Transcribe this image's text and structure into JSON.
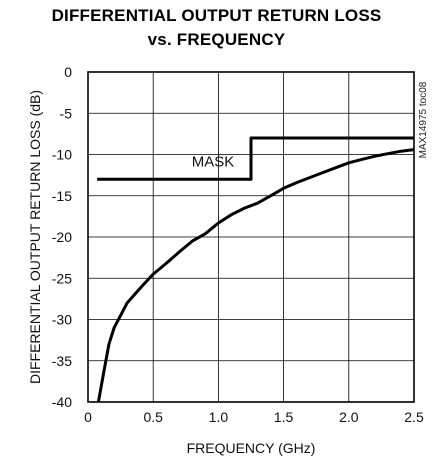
{
  "chart_data": {
    "type": "line",
    "title": "DIFFERENTIAL OUTPUT RETURN LOSS",
    "subtitle": "vs. FREQUENCY",
    "xlabel": "FREQUENCY (GHz)",
    "ylabel": "DIFFERENTIAL OUTPUT RETURN LOSS (dB)",
    "xlim": [
      0,
      2.5
    ],
    "ylim": [
      -40,
      0
    ],
    "xticks": [
      0,
      0.5,
      1.0,
      1.5,
      2.0,
      2.5
    ],
    "xtick_labels": [
      "0",
      "0.5",
      "1.0",
      "1.5",
      "2.0",
      "2.5"
    ],
    "yticks": [
      0,
      -5,
      -10,
      -15,
      -20,
      -25,
      -30,
      -35,
      -40
    ],
    "ytick_labels": [
      "0",
      "-5",
      "-10",
      "-15",
      "-20",
      "-25",
      "-30",
      "-35",
      "-40"
    ],
    "grid": true,
    "annotations": {
      "mask_label": "MASK",
      "figure_id": "MAX14975 toc08"
    },
    "series": [
      {
        "values": [
          [
            0.08,
            -40
          ],
          [
            0.12,
            -36.5
          ],
          [
            0.16,
            -33
          ],
          [
            0.2,
            -31
          ],
          [
            0.25,
            -29.5
          ],
          [
            0.3,
            -28
          ],
          [
            0.4,
            -26.2
          ],
          [
            0.5,
            -24.5
          ],
          [
            0.6,
            -23.2
          ],
          [
            0.7,
            -21.8
          ],
          [
            0.8,
            -20.5
          ],
          [
            0.9,
            -19.6
          ],
          [
            1.0,
            -18.3
          ],
          [
            1.1,
            -17.3
          ],
          [
            1.2,
            -16.5
          ],
          [
            1.3,
            -15.9
          ],
          [
            1.4,
            -15.0
          ],
          [
            1.5,
            -14.1
          ],
          [
            1.6,
            -13.4
          ],
          [
            1.7,
            -12.8
          ],
          [
            1.8,
            -12.2
          ],
          [
            1.9,
            -11.6
          ],
          [
            2.0,
            -11.0
          ],
          [
            2.1,
            -10.6
          ],
          [
            2.2,
            -10.2
          ],
          [
            2.3,
            -9.9
          ],
          [
            2.4,
            -9.6
          ],
          [
            2.5,
            -9.4
          ]
        ]
      },
      {
        "values": [
          [
            0.07,
            -13
          ],
          [
            1.25,
            -13
          ],
          [
            1.25,
            -8
          ],
          [
            2.5,
            -8
          ]
        ]
      }
    ]
  }
}
